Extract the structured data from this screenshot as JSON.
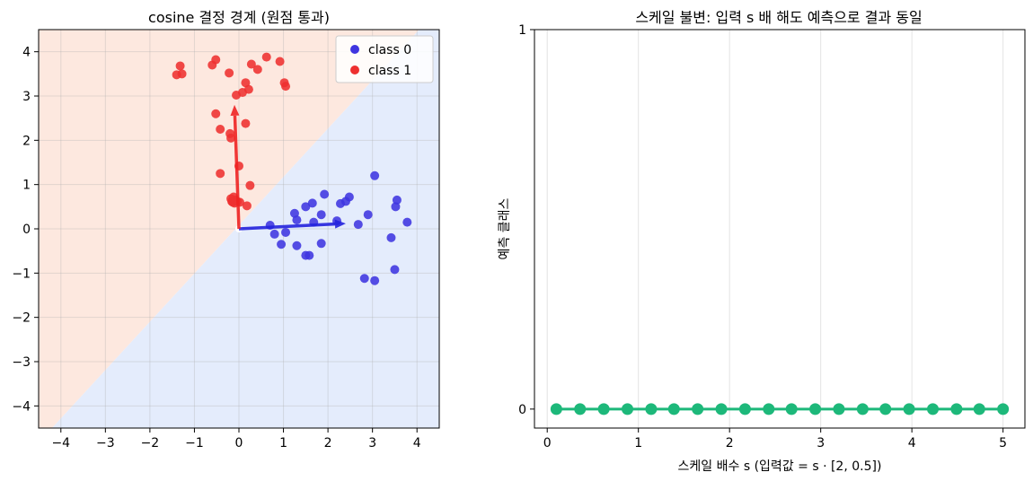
{
  "chart_data": [
    {
      "type": "scatter",
      "title": "cosine 결정 경계 (원점 통과)",
      "xlabel": "",
      "ylabel": "",
      "xlim": [
        -4.5,
        4.5
      ],
      "ylim": [
        -4.5,
        4.5
      ],
      "xticks": [
        -4,
        -3,
        -2,
        -1,
        0,
        1,
        2,
        3,
        4
      ],
      "yticks": [
        -4,
        -3,
        -2,
        -1,
        0,
        1,
        2,
        3,
        4
      ],
      "grid": true,
      "legend_position": "top-right",
      "background_regions": [
        {
          "class": "class 1",
          "color": "#fde8df",
          "side": "upper-left"
        },
        {
          "class": "class 0",
          "color": "#e4ecfc",
          "side": "lower-right"
        }
      ],
      "decision_boundary": [
        [
          -4.2,
          -4.5
        ],
        [
          4.05,
          4.5
        ]
      ],
      "series": [
        {
          "name": "class 0",
          "color": "#3f35e0",
          "points": [
            [
              0.7,
              0.08
            ],
            [
              0.8,
              -0.12
            ],
            [
              0.95,
              -0.35
            ],
            [
              1.05,
              -0.08
            ],
            [
              1.25,
              0.35
            ],
            [
              1.3,
              0.2
            ],
            [
              1.3,
              -0.38
            ],
            [
              1.5,
              0.5
            ],
            [
              1.5,
              -0.6
            ],
            [
              1.58,
              -0.6
            ],
            [
              1.65,
              0.58
            ],
            [
              1.68,
              0.15
            ],
            [
              1.85,
              0.32
            ],
            [
              1.85,
              -0.33
            ],
            [
              1.92,
              0.78
            ],
            [
              2.2,
              0.18
            ],
            [
              2.28,
              0.57
            ],
            [
              2.4,
              0.62
            ],
            [
              2.48,
              0.72
            ],
            [
              2.68,
              0.1
            ],
            [
              2.82,
              -1.12
            ],
            [
              2.9,
              0.32
            ],
            [
              3.05,
              1.2
            ],
            [
              3.05,
              -1.17
            ],
            [
              3.42,
              -0.2
            ],
            [
              3.5,
              -0.92
            ],
            [
              3.52,
              0.5
            ],
            [
              3.55,
              0.65
            ],
            [
              3.78,
              0.15
            ]
          ]
        },
        {
          "name": "class 1",
          "color": "#ee3030",
          "points": [
            [
              -1.4,
              3.48
            ],
            [
              -1.32,
              3.68
            ],
            [
              -1.28,
              3.5
            ],
            [
              -0.6,
              3.7
            ],
            [
              -0.52,
              3.82
            ],
            [
              -0.52,
              2.6
            ],
            [
              -0.42,
              2.25
            ],
            [
              -0.42,
              1.25
            ],
            [
              -0.22,
              3.52
            ],
            [
              -0.2,
              2.15
            ],
            [
              -0.18,
              2.05
            ],
            [
              -0.18,
              0.68
            ],
            [
              -0.16,
              0.62
            ],
            [
              -0.14,
              0.6
            ],
            [
              -0.12,
              0.72
            ],
            [
              -0.1,
              0.58
            ],
            [
              -0.08,
              0.65
            ],
            [
              -0.06,
              3.02
            ],
            [
              -0.04,
              0.62
            ],
            [
              0.0,
              1.42
            ],
            [
              0.02,
              0.6
            ],
            [
              0.08,
              3.08
            ],
            [
              0.15,
              3.3
            ],
            [
              0.15,
              2.38
            ],
            [
              0.18,
              0.52
            ],
            [
              0.22,
              3.15
            ],
            [
              0.25,
              0.98
            ],
            [
              0.28,
              3.72
            ],
            [
              0.42,
              3.6
            ],
            [
              0.62,
              3.88
            ],
            [
              0.92,
              3.78
            ],
            [
              1.02,
              3.3
            ],
            [
              1.05,
              3.22
            ]
          ]
        }
      ],
      "vectors": [
        {
          "name": "class 0",
          "color": "#2222dd",
          "from": [
            0,
            0
          ],
          "to": [
            2.4,
            0.12
          ]
        },
        {
          "name": "class 1",
          "color": "#ee2222",
          "from": [
            0,
            0
          ],
          "to": [
            -0.1,
            2.8
          ]
        }
      ]
    },
    {
      "type": "line",
      "title": "스케일 불변: 입력 s 배 해도 예측으로 결과 동일",
      "xlabel": "스케일 배수 s (입력값 = s · [2, 0.5])",
      "ylabel": "예측 클래스",
      "xlim": [
        -0.14,
        5.24
      ],
      "ylim": [
        -0.05,
        1.0
      ],
      "xticks": [
        0,
        1,
        2,
        3,
        4,
        5
      ],
      "yticks": [
        0,
        1
      ],
      "grid": true,
      "series": [
        {
          "color": "#1db87a",
          "x": [
            0.1,
            0.36,
            0.62,
            0.88,
            1.14,
            1.39,
            1.65,
            1.91,
            2.17,
            2.43,
            2.68,
            2.94,
            3.2,
            3.46,
            3.71,
            3.97,
            4.23,
            4.49,
            4.74,
            5.0
          ],
          "y": [
            0,
            0,
            0,
            0,
            0,
            0,
            0,
            0,
            0,
            0,
            0,
            0,
            0,
            0,
            0,
            0,
            0,
            0,
            0,
            0
          ]
        }
      ]
    }
  ]
}
